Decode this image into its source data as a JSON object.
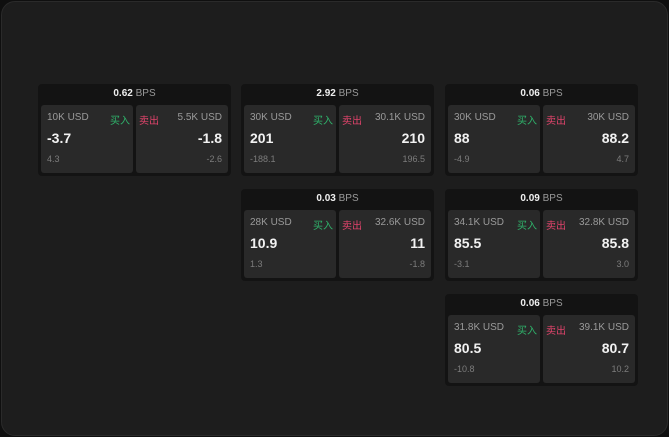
{
  "unit": "BPS",
  "labels": {
    "buy": "买入",
    "sell": "卖出"
  },
  "colors": {
    "buy": "#2fb36b",
    "sell": "#e0436b"
  },
  "cards": [
    {
      "spread": "0.62",
      "bid": {
        "qty": "10K USD",
        "price": "-3.7",
        "change": "4.3"
      },
      "ask": {
        "qty": "5.5K USD",
        "price": "-1.8",
        "change": "-2.6"
      }
    },
    {
      "spread": "2.92",
      "bid": {
        "qty": "30K USD",
        "price": "201",
        "change": "-188.1"
      },
      "ask": {
        "qty": "30.1K USD",
        "price": "210",
        "change": "196.5"
      }
    },
    {
      "spread": "0.06",
      "bid": {
        "qty": "30K USD",
        "price": "88",
        "change": "-4.9"
      },
      "ask": {
        "qty": "30K USD",
        "price": "88.2",
        "change": "4.7"
      }
    },
    {
      "spread": "0.03",
      "bid": {
        "qty": "28K USD",
        "price": "10.9",
        "change": "1.3"
      },
      "ask": {
        "qty": "32.6K USD",
        "price": "11",
        "change": "-1.8"
      }
    },
    {
      "spread": "0.09",
      "bid": {
        "qty": "34.1K USD",
        "price": "85.5",
        "change": "-3.1"
      },
      "ask": {
        "qty": "32.8K USD",
        "price": "85.8",
        "change": "3.0"
      }
    },
    {
      "spread": "0.06",
      "bid": {
        "qty": "31.8K USD",
        "price": "80.5",
        "change": "-10.8"
      },
      "ask": {
        "qty": "39.1K USD",
        "price": "80.7",
        "change": "10.2"
      }
    }
  ]
}
